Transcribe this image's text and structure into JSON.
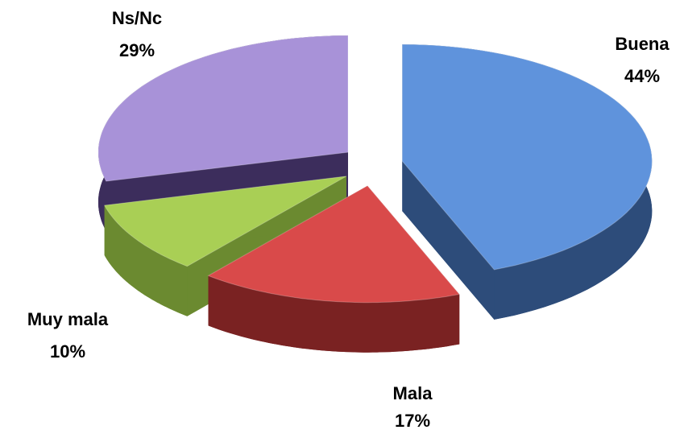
{
  "chart_data": {
    "type": "pie",
    "categories": [
      "Buena",
      "Mala",
      "Muy mala",
      "Ns/Nc"
    ],
    "values": [
      44,
      17,
      10,
      29
    ],
    "value_labels": [
      "44%",
      "17%",
      "10%",
      "29%"
    ],
    "colors": [
      "#5f93dc",
      "#d94a4a",
      "#a9cf55",
      "#a892d8"
    ],
    "side_colors": [
      "#2d4c7a",
      "#7a2222",
      "#6b8a30",
      "#3c2d5c"
    ]
  }
}
